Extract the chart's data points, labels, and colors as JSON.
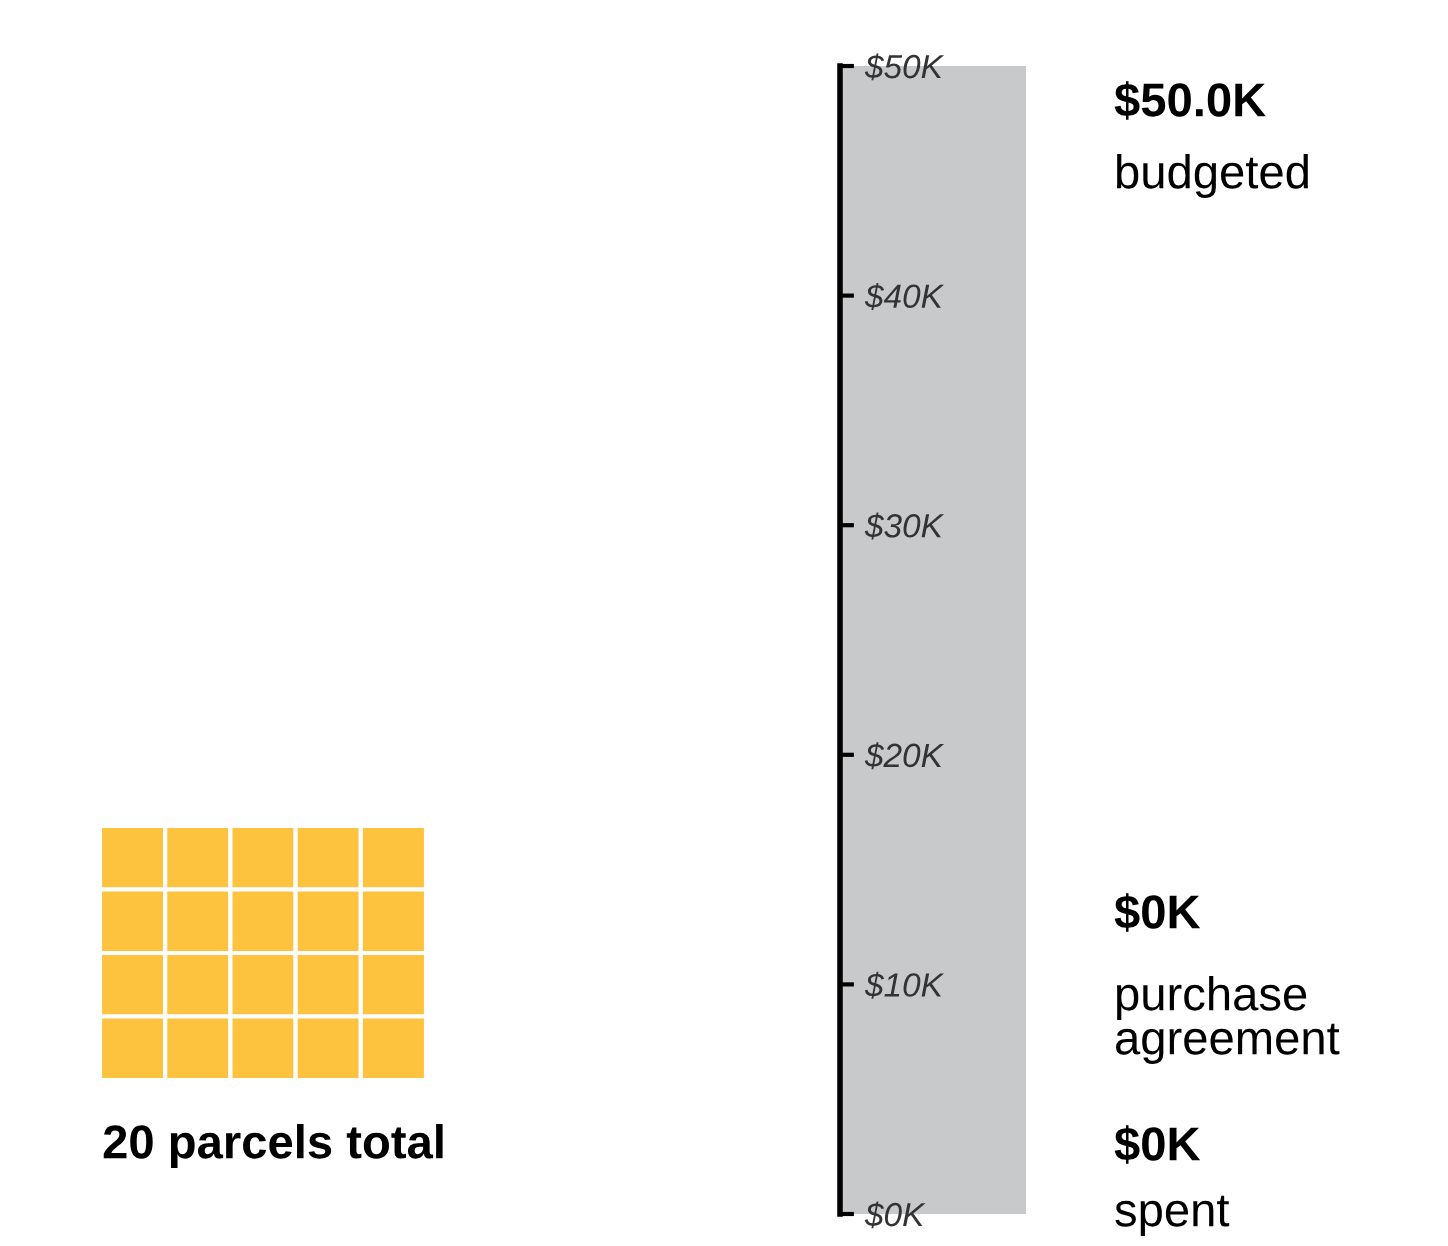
{
  "chart_data": {
    "type": "bar",
    "categories": [
      null
    ],
    "series": [
      {
        "name": "budgeted",
        "color": "#c8c9cb",
        "values": [
          50
        ]
      },
      {
        "name": "purchase agreement",
        "values": [
          0
        ]
      },
      {
        "name": "spent",
        "values": [
          0
        ]
      }
    ],
    "ylim": [
      0,
      50
    ],
    "yticks": [
      {
        "value": 0,
        "label": "$0K"
      },
      {
        "value": 10,
        "label": "$10K"
      },
      {
        "value": 20,
        "label": "$20K"
      },
      {
        "value": 30,
        "label": "$30K"
      },
      {
        "value": 40,
        "label": "$40K"
      },
      {
        "value": 50,
        "label": "$50K"
      }
    ],
    "grid": false,
    "legend": false,
    "annotations": [
      "$50.0K",
      "$0K",
      "$0K",
      "20 parcels total"
    ]
  }
}
